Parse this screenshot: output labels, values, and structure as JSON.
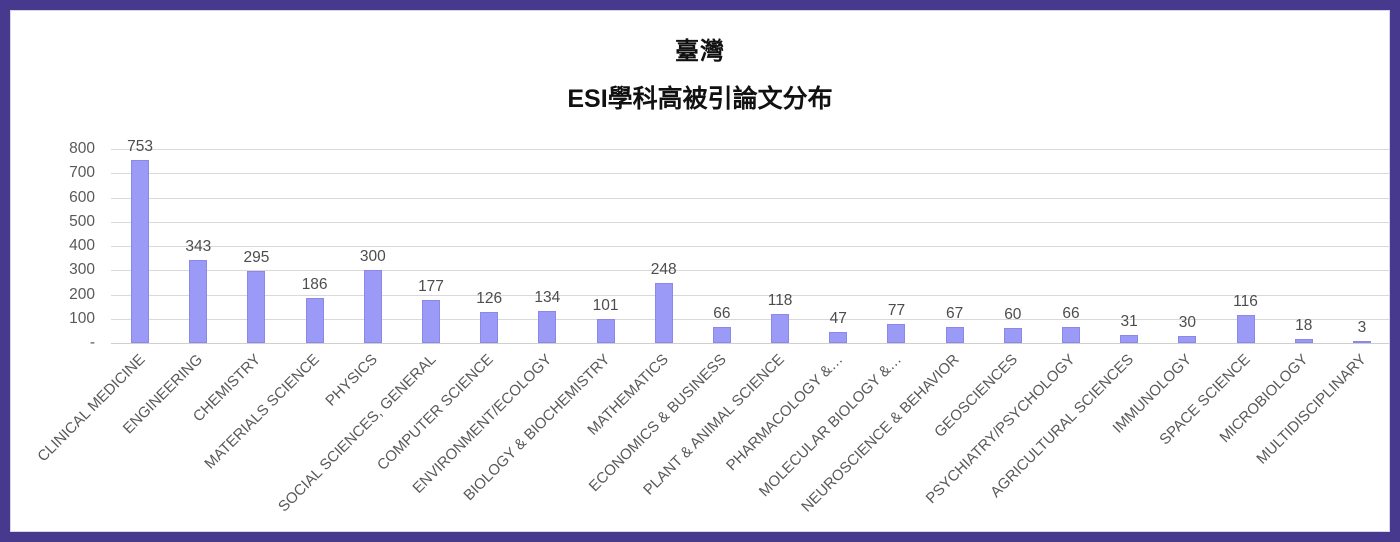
{
  "frame": {
    "border_color": "#473a8e",
    "background": "#ffffff"
  },
  "chart_data": {
    "type": "bar",
    "title": "臺灣",
    "subtitle": "ESI學科高被引論文分布",
    "categories": [
      "CLINICAL MEDICINE",
      "ENGINEERING",
      "CHEMISTRY",
      "MATERIALS SCIENCE",
      "PHYSICS",
      "SOCIAL SCIENCES, GENERAL",
      "COMPUTER SCIENCE",
      "ENVIRONMENT/ECOLOGY",
      "BIOLOGY & BIOCHEMISTRY",
      "MATHEMATICS",
      "ECONOMICS & BUSINESS",
      "PLANT & ANIMAL SCIENCE",
      "PHARMACOLOGY &…",
      "MOLECULAR BIOLOGY &…",
      "NEUROSCIENCE & BEHAVIOR",
      "GEOSCIENCES",
      "PSYCHIATRY/PSYCHOLOGY",
      "AGRICULTURAL SCIENCES",
      "IMMUNOLOGY",
      "SPACE SCIENCE",
      "MICROBIOLOGY",
      "MULTIDISCIPLINARY"
    ],
    "values": [
      753,
      343,
      295,
      186,
      300,
      177,
      126,
      134,
      101,
      248,
      66,
      118,
      47,
      77,
      67,
      60,
      66,
      31,
      30,
      116,
      18,
      3
    ],
    "xlabel": "",
    "ylabel": "",
    "ylim": [
      0,
      800
    ],
    "ytick_interval": 100,
    "ytick_labels": [
      "-",
      "100",
      "200",
      "300",
      "400",
      "500",
      "600",
      "700",
      "800"
    ],
    "grid": true,
    "legend": false,
    "bar_color": "#9b9af6",
    "bar_border_color": "#8a89eb",
    "gridline_color": "#d9d9d9",
    "axis_label_color": "#595959",
    "value_label_color": "#4d4d4d"
  }
}
